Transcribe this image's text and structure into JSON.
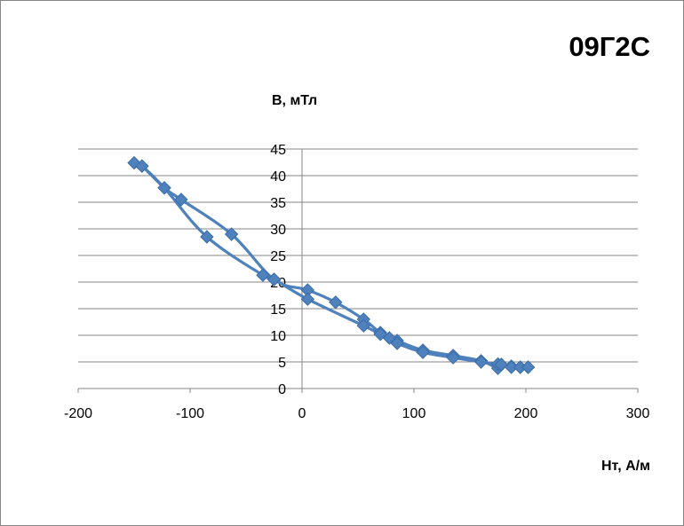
{
  "chart_data": {
    "type": "scatter",
    "title": "09Г2С",
    "xlabel": "Нт, А/м",
    "ylabel": "В, мТл",
    "xlim": [
      -200,
      300
    ],
    "ylim": [
      0,
      45
    ],
    "x_ticks": [
      -200,
      -100,
      0,
      100,
      200,
      300
    ],
    "y_ticks": [
      0,
      5,
      10,
      15,
      20,
      25,
      30,
      35,
      40,
      45
    ],
    "grid": "horizontal",
    "legend": "none",
    "series_color": "#4F81BD",
    "marker": "diamond",
    "line": "smooth",
    "series": [
      {
        "points": [
          [
            202,
            4.0
          ],
          [
            195,
            4.0
          ],
          [
            187,
            4.2
          ],
          [
            178,
            4.5
          ],
          [
            175,
            3.8
          ],
          [
            160,
            5.2
          ],
          [
            135,
            6.2
          ],
          [
            108,
            7.2
          ],
          [
            85,
            9.0
          ],
          [
            70,
            10.5
          ],
          [
            55,
            13.0
          ],
          [
            30,
            16.2
          ],
          [
            5,
            18.5
          ],
          [
            -25,
            20.5
          ],
          [
            -63,
            29.0
          ],
          [
            -108,
            35.5
          ],
          [
            -123,
            37.7
          ],
          [
            -143,
            41.8
          ],
          [
            -150,
            42.4
          ],
          [
            -143,
            41.8
          ],
          [
            -123,
            37.7
          ],
          [
            -85,
            28.5
          ],
          [
            -35,
            21.3
          ],
          [
            -25,
            20.5
          ],
          [
            5,
            16.8
          ],
          [
            55,
            11.8
          ],
          [
            70,
            10.2
          ],
          [
            78,
            9.5
          ],
          [
            85,
            8.5
          ],
          [
            108,
            6.8
          ],
          [
            135,
            5.8
          ],
          [
            160,
            5.0
          ],
          [
            175,
            4.6
          ],
          [
            178,
            4.5
          ],
          [
            187,
            4.0
          ],
          [
            195,
            4.0
          ],
          [
            202,
            4.0
          ]
        ]
      }
    ]
  }
}
